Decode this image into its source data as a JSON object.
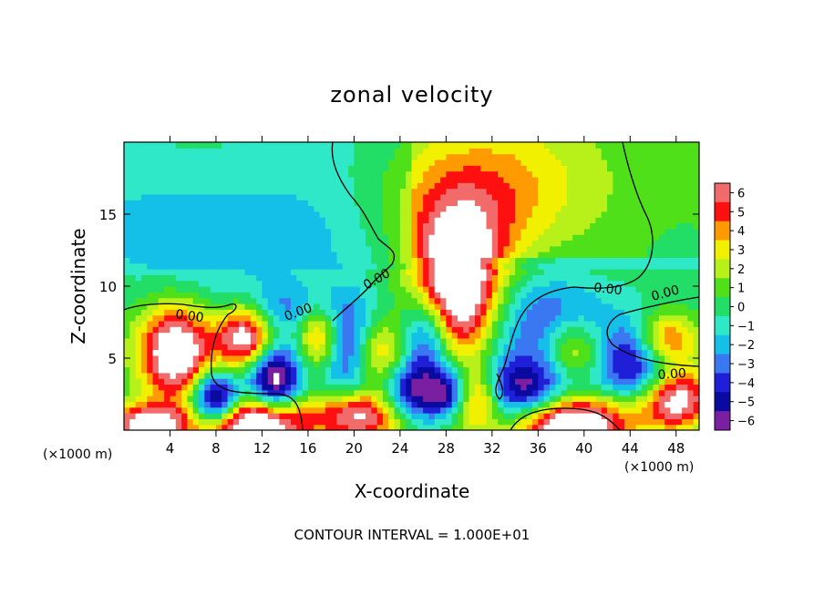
{
  "chart_data": {
    "type": "heatmap",
    "title": "zonal velocity",
    "xlabel": "X-coordinate",
    "ylabel": "Z-coordinate",
    "x_unit": "(×1000 m)",
    "xlim": [
      0,
      50
    ],
    "ylim": [
      0,
      20
    ],
    "x_ticks": [
      4,
      8,
      12,
      16,
      20,
      24,
      28,
      32,
      36,
      40,
      44,
      48
    ],
    "y_ticks": [
      5,
      10,
      15
    ],
    "contour_label": "0.00",
    "footer": "CONTOUR INTERVAL = 1.000E+01",
    "colorbar": {
      "ticks": [
        6,
        5,
        4,
        3,
        2,
        1,
        0,
        -1,
        -2,
        -3,
        -4,
        -5,
        -6
      ],
      "tick_labels": [
        "6",
        "5",
        "4",
        "3",
        "2",
        "1",
        "0",
        "−1",
        "−2",
        "−3",
        "−4",
        "−5",
        "−6"
      ]
    },
    "features": [
      {
        "x": 4.5,
        "z": 5.5,
        "sx": 2.3,
        "sz": 2.3,
        "v": 9
      },
      {
        "x": 10.5,
        "z": 6.5,
        "sx": 1.7,
        "sz": 1.6,
        "v": 8
      },
      {
        "x": 17,
        "z": 6.5,
        "sx": 1.3,
        "sz": 1.8,
        "v": 6
      },
      {
        "x": 22,
        "z": 5.2,
        "sx": 1.7,
        "sz": 2.0,
        "v": 7
      },
      {
        "x": 29,
        "z": 9.5,
        "sx": 2.4,
        "sz": 3.2,
        "v": 9
      },
      {
        "x": 39,
        "z": 5.5,
        "sx": 2.1,
        "sz": 1.6,
        "v": 7
      },
      {
        "x": 47,
        "z": 6.2,
        "sx": 2.0,
        "sz": 1.4,
        "v": 7
      },
      {
        "x": 11.5,
        "z": 0.5,
        "sx": 3.0,
        "sz": 1.4,
        "v": 10
      },
      {
        "x": 2,
        "z": 0.4,
        "sx": 2.6,
        "sz": 1.0,
        "v": 8
      },
      {
        "x": 20.5,
        "z": 1.0,
        "sx": 3.0,
        "sz": 1.3,
        "v": 8
      },
      {
        "x": 39,
        "z": 0.5,
        "sx": 3.8,
        "sz": 1.4,
        "v": 10
      },
      {
        "x": 48,
        "z": 2.2,
        "sx": 2.2,
        "sz": 1.5,
        "v": 8
      },
      {
        "x": 30.5,
        "z": 2.3,
        "sx": 1.6,
        "sz": 1.4,
        "v": 7
      },
      {
        "x": 29.5,
        "z": 13.5,
        "sx": 4.0,
        "sz": 3.0,
        "v": 3.5
      },
      {
        "x": 31,
        "z": 17.5,
        "sx": 7.0,
        "sz": 3.0,
        "v": 2
      },
      {
        "x": 40,
        "z": 17,
        "sx": 9.0,
        "sz": 4.0,
        "v": 0.8
      },
      {
        "x": 8,
        "z": 2.2,
        "sx": 1.5,
        "sz": 1.3,
        "v": -9
      },
      {
        "x": 13,
        "z": 3.5,
        "sx": 1.6,
        "sz": 1.7,
        "v": -8
      },
      {
        "x": 20,
        "z": 5.5,
        "sx": 2.4,
        "sz": 2.6,
        "v": -6
      },
      {
        "x": 25,
        "z": 2.5,
        "sx": 2.0,
        "sz": 1.6,
        "v": -6
      },
      {
        "x": 28.5,
        "z": 2.6,
        "sx": 1.4,
        "sz": 1.2,
        "v": -6
      },
      {
        "x": 34,
        "z": 2.5,
        "sx": 2.8,
        "sz": 1.6,
        "v": -6
      },
      {
        "x": 38,
        "z": 5.5,
        "sx": 3.4,
        "sz": 2.3,
        "v": -5
      },
      {
        "x": 45,
        "z": 5,
        "sx": 2.4,
        "sz": 2.0,
        "v": -6
      },
      {
        "x": 26.5,
        "z": 6.5,
        "sx": 1.5,
        "sz": 2.2,
        "v": -5
      },
      {
        "x": 14.5,
        "z": 8.5,
        "sx": 3.5,
        "sz": 1.2,
        "v": -2.5
      },
      {
        "x": 5,
        "z": 14,
        "sx": 6.0,
        "sz": 3.0,
        "v": -1.5
      },
      {
        "x": 15,
        "z": 12.5,
        "sx": 5.0,
        "sz": 3.0,
        "v": -1.3
      },
      {
        "x": 37,
        "z": 9,
        "sx": 4.0,
        "sz": 2.0,
        "v": -1.8
      },
      {
        "x": 47,
        "z": 12.5,
        "sx": 4.0,
        "sz": 3.0,
        "v": -0.7
      }
    ]
  }
}
